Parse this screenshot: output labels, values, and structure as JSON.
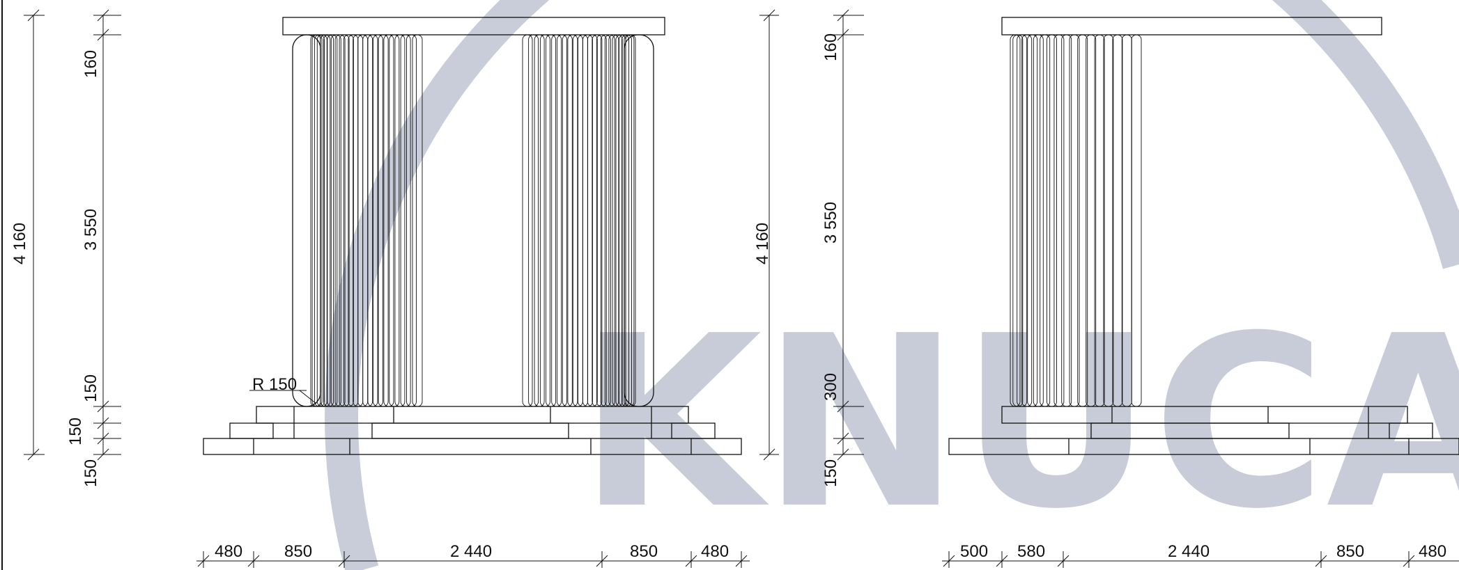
{
  "watermark": {
    "text": "KNUCA",
    "color": "#b6bccc"
  },
  "colors": {
    "line": "#111111",
    "background": "#ffffff"
  },
  "left_view": {
    "overall_height": "4 160",
    "heights": [
      "160",
      "3 550",
      "150",
      "150",
      "150"
    ],
    "radius_label": "R 150",
    "widths": [
      "480",
      "850",
      "2 440",
      "850",
      "480"
    ]
  },
  "right_view": {
    "overall_height": "4 160",
    "heights": [
      "160",
      "3 550",
      "300",
      "150"
    ],
    "widths": [
      "500",
      "580",
      "2 440",
      "850",
      "480"
    ]
  }
}
